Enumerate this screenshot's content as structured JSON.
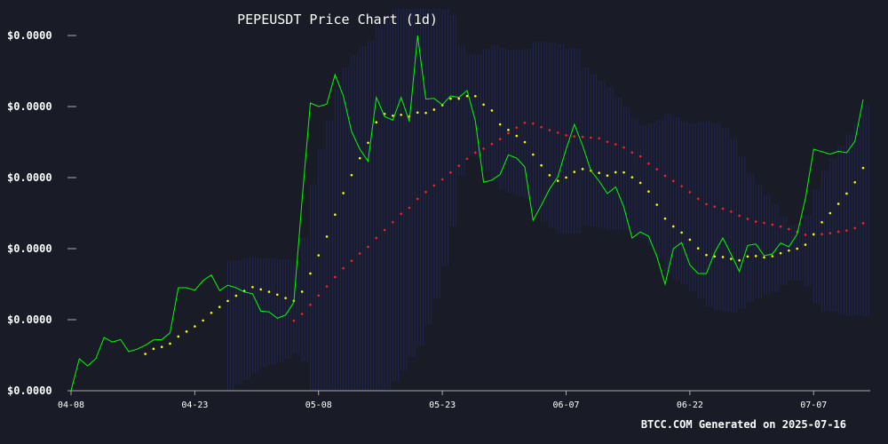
{
  "chart_data": {
    "type": "line",
    "title": "PEPEUSDT Price Chart (1d)",
    "footer": "BTCC.COM Generated on 2025-07-16",
    "xlabel": "",
    "ylabel": "",
    "x_tick_labels": [
      "04-08",
      "04-23",
      "05-08",
      "05-23",
      "06-07",
      "06-22",
      "07-07"
    ],
    "y_tick_labels": [
      "$0.0000",
      "$0.0000",
      "$0.0000",
      "$0.0000",
      "$0.0000",
      "$0.0000"
    ],
    "ylim": [
      0,
      100
    ],
    "grid": false,
    "colors": {
      "background": "#191c27",
      "price": "#00ff00",
      "ma_short": "#ffff00",
      "ma_long": "#ff2020",
      "band": "#2a2f8a",
      "axis": "#aaaaaa"
    },
    "series": [
      {
        "key": "price",
        "style": "line",
        "values": [
          0,
          9,
          7,
          9,
          15,
          13.7,
          14.4,
          11,
          11.7,
          12.8,
          14.3,
          14.4,
          16.3,
          29,
          29,
          28.3,
          31,
          32.6,
          28.2,
          29.7,
          29,
          27.8,
          27.3,
          22.4,
          22.2,
          20.4,
          21.3,
          24.9,
          53.8,
          81,
          80,
          80.7,
          89,
          83,
          73,
          68,
          64.6,
          82.6,
          77.2,
          76.2,
          82.6,
          75.8,
          100,
          82.1,
          82.3,
          80.5,
          83,
          82.6,
          84.5,
          76,
          58.7,
          59.3,
          60.9,
          66.4,
          65.5,
          63,
          48,
          52.2,
          56.8,
          60.2,
          68,
          75,
          69,
          62,
          59,
          55.5,
          57.4,
          51.7,
          43,
          44.7,
          43.5,
          37.8,
          30,
          40,
          41.7,
          35.4,
          33,
          33,
          38.9,
          43,
          38.4,
          33.6,
          40.9,
          41.3,
          38,
          38.5,
          41.6,
          40.5,
          44.1,
          54.1,
          68,
          67.3,
          66.6,
          67.4,
          67,
          70.2,
          82
        ]
      },
      {
        "key": "ma_short",
        "style": "dotted",
        "values": [
          null,
          null,
          null,
          null,
          null,
          null,
          null,
          null,
          null,
          null,
          null,
          null,
          null,
          null,
          null,
          null,
          null,
          null,
          null,
          null,
          null,
          null,
          null,
          null,
          null,
          null,
          null,
          null,
          null,
          null,
          null,
          null,
          null,
          null,
          null,
          null,
          null,
          null,
          null,
          null,
          null,
          null,
          null,
          null,
          null,
          null,
          null,
          null,
          null,
          null,
          null,
          null,
          null,
          null,
          null,
          null,
          null,
          null,
          null,
          null,
          null,
          null,
          null,
          null,
          null,
          null,
          null,
          null,
          null,
          null,
          null,
          null,
          null,
          null,
          null,
          null,
          null,
          null,
          null,
          null,
          null,
          null,
          null,
          null,
          null,
          null,
          null,
          null,
          null,
          null,
          null,
          null,
          null,
          null,
          null,
          null,
          null
        ],
        "values_note_ignored": null
      }
    ]
  }
}
